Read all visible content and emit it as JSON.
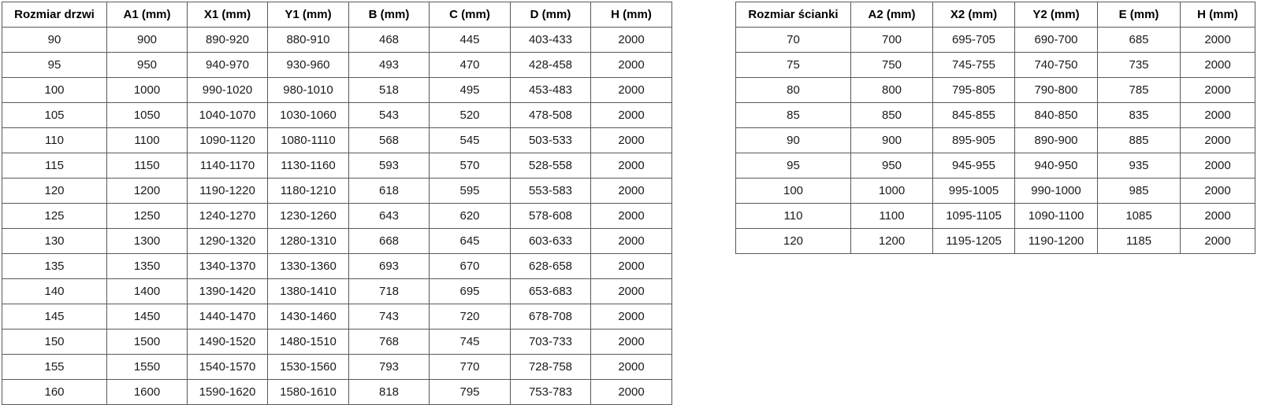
{
  "page": {
    "background": "#ffffff",
    "border_color": "#595959",
    "text_color": "#1a1a1a",
    "header_text_color": "#000000"
  },
  "door_table": {
    "title": "door sizes table",
    "headers": [
      "Rozmiar drzwi",
      "A1 (mm)",
      "X1 (mm)",
      "Y1 (mm)",
      "B (mm)",
      "C (mm)",
      "D (mm)",
      "H (mm)"
    ],
    "rows": [
      [
        "90",
        "900",
        "890-920",
        "880-910",
        "468",
        "445",
        "403-433",
        "2000"
      ],
      [
        "95",
        "950",
        "940-970",
        "930-960",
        "493",
        "470",
        "428-458",
        "2000"
      ],
      [
        "100",
        "1000",
        "990-1020",
        "980-1010",
        "518",
        "495",
        "453-483",
        "2000"
      ],
      [
        "105",
        "1050",
        "1040-1070",
        "1030-1060",
        "543",
        "520",
        "478-508",
        "2000"
      ],
      [
        "110",
        "1100",
        "1090-1120",
        "1080-1110",
        "568",
        "545",
        "503-533",
        "2000"
      ],
      [
        "115",
        "1150",
        "1140-1170",
        "1130-1160",
        "593",
        "570",
        "528-558",
        "2000"
      ],
      [
        "120",
        "1200",
        "1190-1220",
        "1180-1210",
        "618",
        "595",
        "553-583",
        "2000"
      ],
      [
        "125",
        "1250",
        "1240-1270",
        "1230-1260",
        "643",
        "620",
        "578-608",
        "2000"
      ],
      [
        "130",
        "1300",
        "1290-1320",
        "1280-1310",
        "668",
        "645",
        "603-633",
        "2000"
      ],
      [
        "135",
        "1350",
        "1340-1370",
        "1330-1360",
        "693",
        "670",
        "628-658",
        "2000"
      ],
      [
        "140",
        "1400",
        "1390-1420",
        "1380-1410",
        "718",
        "695",
        "653-683",
        "2000"
      ],
      [
        "145",
        "1450",
        "1440-1470",
        "1430-1460",
        "743",
        "720",
        "678-708",
        "2000"
      ],
      [
        "150",
        "1500",
        "1490-1520",
        "1480-1510",
        "768",
        "745",
        "703-733",
        "2000"
      ],
      [
        "155",
        "1550",
        "1540-1570",
        "1530-1560",
        "793",
        "770",
        "728-758",
        "2000"
      ],
      [
        "160",
        "1600",
        "1590-1620",
        "1580-1610",
        "818",
        "795",
        "753-783",
        "2000"
      ]
    ]
  },
  "wall_table": {
    "title": "wall panel sizes table",
    "headers": [
      "Rozmiar ścianki",
      "A2 (mm)",
      "X2 (mm)",
      "Y2 (mm)",
      "E (mm)",
      "H (mm)"
    ],
    "rows": [
      [
        "70",
        "700",
        "695-705",
        "690-700",
        "685",
        "2000"
      ],
      [
        "75",
        "750",
        "745-755",
        "740-750",
        "735",
        "2000"
      ],
      [
        "80",
        "800",
        "795-805",
        "790-800",
        "785",
        "2000"
      ],
      [
        "85",
        "850",
        "845-855",
        "840-850",
        "835",
        "2000"
      ],
      [
        "90",
        "900",
        "895-905",
        "890-900",
        "885",
        "2000"
      ],
      [
        "95",
        "950",
        "945-955",
        "940-950",
        "935",
        "2000"
      ],
      [
        "100",
        "1000",
        "995-1005",
        "990-1000",
        "985",
        "2000"
      ],
      [
        "110",
        "1100",
        "1095-1105",
        "1090-1100",
        "1085",
        "2000"
      ],
      [
        "120",
        "1200",
        "1195-1205",
        "1190-1200",
        "1185",
        "2000"
      ]
    ]
  }
}
